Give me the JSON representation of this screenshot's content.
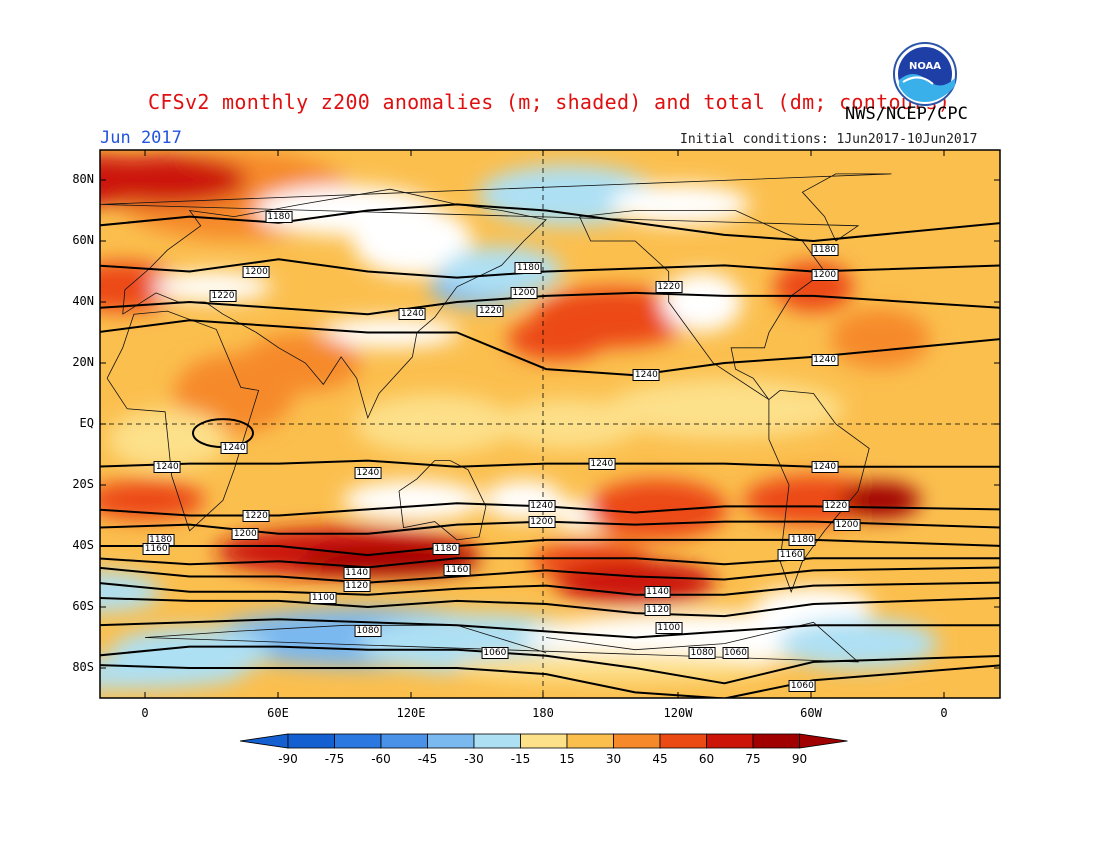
{
  "title": "CFSv2 monthly z200 anomalies (m; shaded) and total (dm; contours)",
  "credit": "NWS/NCEP/CPC",
  "logo_text": "NOAA",
  "period": "Jun 2017",
  "initial_conditions": "Initial conditions: 1Jun2017-10Jun2017",
  "lat_labels": [
    "80N",
    "60N",
    "40N",
    "20N",
    "EQ",
    "20S",
    "40S",
    "60S",
    "80S"
  ],
  "lon_labels": [
    "0",
    "60E",
    "120E",
    "180",
    "120W",
    "60W",
    "0"
  ],
  "colorbar": {
    "ticks": [
      "-90",
      "-75",
      "-60",
      "-45",
      "-30",
      "-15",
      "15",
      "30",
      "45",
      "60",
      "75",
      "90"
    ],
    "colors": [
      "#1460d0",
      "#2a78e0",
      "#4a92e8",
      "#7ab8f0",
      "#aee0f4",
      "#ffffff",
      "#fde08a",
      "#fbbf4e",
      "#f68a2a",
      "#ec4a14",
      "#cc1408",
      "#a00000"
    ]
  },
  "contour_labels": [
    {
      "text": "1180",
      "lon": 60,
      "lat": 68
    },
    {
      "text": "1200",
      "lon": 50,
      "lat": 50
    },
    {
      "text": "1220",
      "lon": 35,
      "lat": 42
    },
    {
      "text": "1240",
      "lon": 120,
      "lat": 36
    },
    {
      "text": "1220",
      "lon": 155,
      "lat": 37
    },
    {
      "text": "1200",
      "lon": 170,
      "lat": 43
    },
    {
      "text": "1180",
      "lon": 172,
      "lat": 51
    },
    {
      "text": "1220",
      "lon": -125,
      "lat": 45
    },
    {
      "text": "1180",
      "lon": -55,
      "lat": 57
    },
    {
      "text": "1200",
      "lon": -55,
      "lat": 49
    },
    {
      "text": "1240",
      "lon": -135,
      "lat": 16
    },
    {
      "text": "1240",
      "lon": -55,
      "lat": 21
    },
    {
      "text": "1240",
      "lon": 40,
      "lat": -8
    },
    {
      "text": "1240",
      "lon": 10,
      "lat": -14
    },
    {
      "text": "1240",
      "lon": 100,
      "lat": -16
    },
    {
      "text": "1240",
      "lon": -155,
      "lat": -13
    },
    {
      "text": "1240",
      "lon": -55,
      "lat": -14
    },
    {
      "text": "1240",
      "lon": 178,
      "lat": -27
    },
    {
      "text": "1200",
      "lon": 178,
      "lat": -32
    },
    {
      "text": "1220",
      "lon": -50,
      "lat": -27
    },
    {
      "text": "1200",
      "lon": -45,
      "lat": -33
    },
    {
      "text": "1220",
      "lon": 50,
      "lat": -30
    },
    {
      "text": "1200",
      "lon": 45,
      "lat": -36
    },
    {
      "text": "1180",
      "lon": 7,
      "lat": -38
    },
    {
      "text": "1160",
      "lon": 5,
      "lat": -41
    },
    {
      "text": "1180",
      "lon": 135,
      "lat": -41
    },
    {
      "text": "1160",
      "lon": 140,
      "lat": -48
    },
    {
      "text": "1140",
      "lon": 95,
      "lat": -49
    },
    {
      "text": "1120",
      "lon": 95,
      "lat": -53
    },
    {
      "text": "1100",
      "lon": 80,
      "lat": -57
    },
    {
      "text": "1180",
      "lon": -65,
      "lat": -38
    },
    {
      "text": "1160",
      "lon": -70,
      "lat": -43
    },
    {
      "text": "1140",
      "lon": -130,
      "lat": -55
    },
    {
      "text": "1120",
      "lon": -130,
      "lat": -61
    },
    {
      "text": "1100",
      "lon": -125,
      "lat": -67
    },
    {
      "text": "1080",
      "lon": 100,
      "lat": -68
    },
    {
      "text": "1060",
      "lon": 157,
      "lat": -75
    },
    {
      "text": "1060",
      "lon": -95,
      "lat": -75
    },
    {
      "text": "1080",
      "lon": -110,
      "lat": -75
    },
    {
      "text": "1060",
      "lon": -65,
      "lat": -86
    }
  ]
}
